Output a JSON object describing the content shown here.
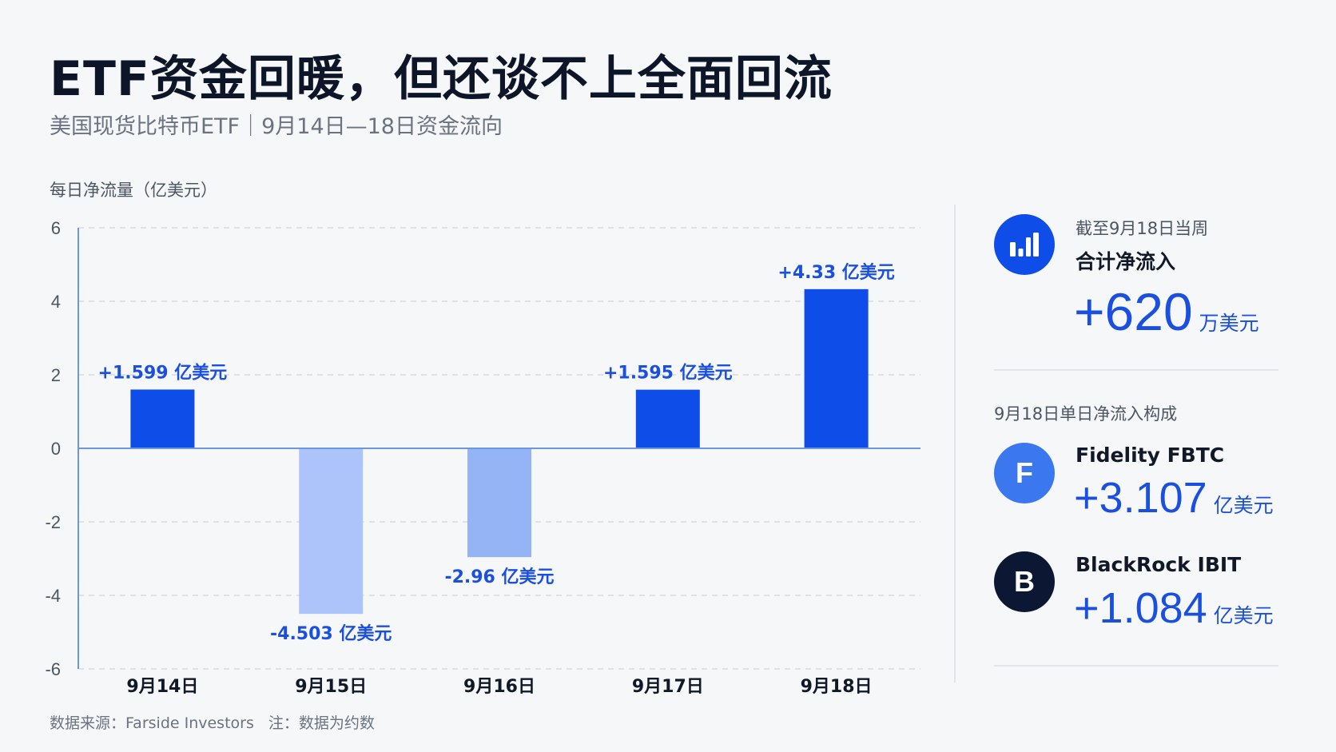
{
  "header": {
    "title": "ETF资金回暖，但还谈不上全面回流",
    "subtitle": "美国现货比特币ETF｜9月14日—18日资金流向"
  },
  "chart_data": {
    "type": "bar",
    "ylabel": "每日净流量（亿美元）",
    "categories": [
      "9月14日",
      "9月15日",
      "9月16日",
      "9月17日",
      "9月18日"
    ],
    "values": [
      1.599,
      -4.503,
      -2.96,
      1.595,
      4.33
    ],
    "data_labels": [
      "+1.599 亿美元",
      "-4.503 亿美元",
      "-2.96 亿美元",
      "+1.595 亿美元",
      "+4.33 亿美元"
    ],
    "ylim": [
      -6,
      6
    ],
    "yticks": [
      6,
      4,
      2,
      0,
      -2,
      -4,
      -6
    ],
    "grid": true,
    "colors": {
      "positive": "#0f4de8",
      "negative_light": "#adc4fb",
      "negative_mid": "#94b4f5",
      "axis": "#6c97e0",
      "grid": "#d6dbe3",
      "label": "#1a4fe0"
    }
  },
  "summary": {
    "icon": "bar-chart-icon",
    "caption": "截至9月18日当周",
    "label": "合计净流入",
    "value": "+620",
    "unit": "万美元"
  },
  "breakdown": {
    "heading": "9月18日单日净流入构成",
    "items": [
      {
        "badge": "F",
        "name": "Fidelity FBTC",
        "value": "+3.107",
        "unit": "亿美元",
        "badge_color": "#3b78f0"
      },
      {
        "badge": "B",
        "name": "BlackRock IBIT",
        "value": "+1.084",
        "unit": "亿美元",
        "badge_color": "#0b1733"
      }
    ]
  },
  "footer": {
    "source": "数据来源：Farside Investors",
    "note": "注：数据为约数"
  },
  "accent_color": "#1a4fe0"
}
